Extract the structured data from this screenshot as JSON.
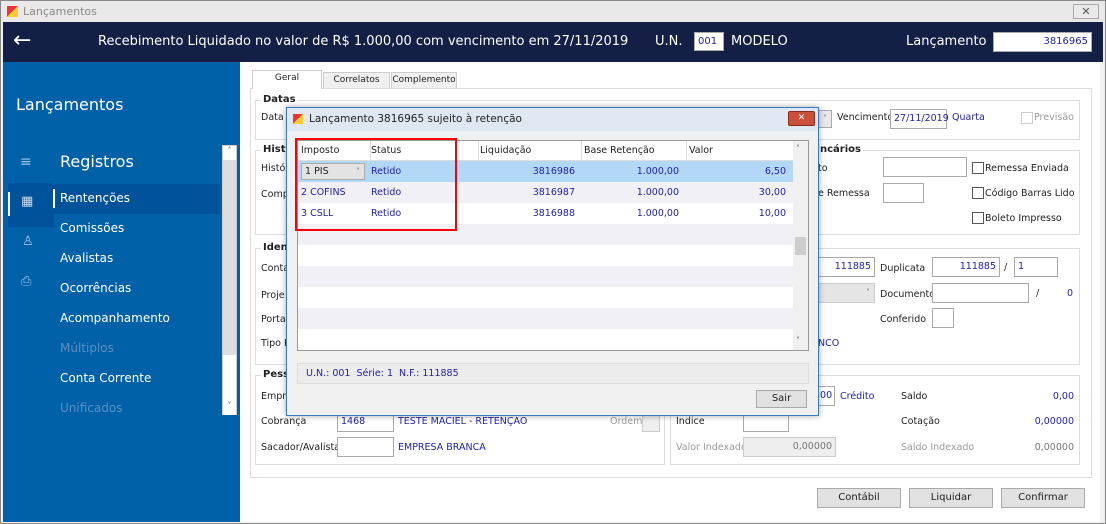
{
  "window": {
    "title": "Lançamentos"
  },
  "header": {
    "description": "Recebimento Liquidado no valor de R$ 1.000,00 com vencimento em 27/11/2019",
    "un_label": "U.N.",
    "un_value": "001",
    "un_name": "MODELO",
    "lancamento_label": "Lançamento",
    "lancamento_value": "3816965"
  },
  "sidebar": {
    "title": "Lançamentos",
    "section": "Registros",
    "items": [
      {
        "label": "Rentenções",
        "active": true,
        "enabled": true
      },
      {
        "label": "Comissões",
        "enabled": true
      },
      {
        "label": "Avalistas",
        "enabled": true
      },
      {
        "label": "Ocorrências",
        "enabled": true
      },
      {
        "label": "Acompanhamento",
        "enabled": true
      },
      {
        "label": "Múltiplos",
        "enabled": false
      },
      {
        "label": "Conta Corrente",
        "enabled": true
      },
      {
        "label": "Unificados",
        "enabled": false
      }
    ]
  },
  "tabs": [
    "Geral",
    "Correlatos",
    "Complemento"
  ],
  "form": {
    "datas_title": "Datas",
    "data_label": "Data",
    "vencimento_label": "Vencimento",
    "vencimento_value": "27/11/2019",
    "weekday": "Quarta",
    "previsao_label": "Previsão",
    "historico_title": "Histo",
    "historico_label": "Histór",
    "comp_label": "Comp",
    "bancarios_title": "ncários",
    "banc_field1_label": "to",
    "banc_field2_label": "e Remessa",
    "remessa_enviada": "Remessa Enviada",
    "codigo_barras": "Código Barras Lido",
    "boleto_impresso": "Boleto Impresso",
    "ident_title": "Iden",
    "conta_label": "Conta",
    "projeto_label": "Proje",
    "portador_label": "Porta",
    "tipo_label": "Tipo F",
    "nf_value": "111885",
    "duplicata_label": "Duplicata",
    "duplicata_value": "111885",
    "duplicata_sep": "/",
    "duplicata_parcela": "1",
    "documento_label": "Documento",
    "documento_sep": "/",
    "documento_num": "0",
    "conferido_label": "Conferido",
    "tipo_value_fragment": "NCO",
    "pessoas_title": "Pess",
    "empresa_label": "Empre",
    "cobranca_label": "Cobrança",
    "cobranca_code": "1468",
    "cobranca_name": "TESTE MACIEL - RETENÇÃO",
    "ordem_label": "Ordem",
    "sacador_label": "Sacador/Avalista",
    "sacador_name": "EMPRESA BRANCA",
    "valor_fragment": ",00",
    "credito_label": "Crédito",
    "saldo_label": "Saldo",
    "saldo_value": "0,00",
    "indice_label": "Índice",
    "cotacao_label": "Cotação",
    "cotacao_value": "0,00000",
    "valor_indexado_label": "Valor Indexado",
    "valor_indexado_value": "0,00000",
    "saldo_indexado_label": "Saldo Indexado",
    "saldo_indexado_value": "0,00000"
  },
  "buttons": {
    "contabil": "Contábil",
    "liquidar": "Liquidar",
    "confirmar": "Confirmar"
  },
  "dialog": {
    "title": "Lançamento 3816965 sujeito à retenção",
    "columns": [
      "Imposto",
      "Status",
      "Liquidação",
      "Base Retenção",
      "Valor"
    ],
    "rows": [
      {
        "imposto": "1 PIS",
        "status": "Retido",
        "liquidacao": "3816986",
        "base": "1.000,00",
        "valor": "6,50"
      },
      {
        "imposto": "2 COFINS",
        "status": "Retido",
        "liquidacao": "3816987",
        "base": "1.000,00",
        "valor": "30,00"
      },
      {
        "imposto": "3 CSLL",
        "status": "Retido",
        "liquidacao": "3816988",
        "base": "1.000,00",
        "valor": "10,00"
      }
    ],
    "footer": "U.N.: 001  Série: 1  N.F.: 111885",
    "sair": "Sair"
  },
  "colors": {
    "header": "#141f45",
    "sidebar": "#0060a8",
    "highlight": "#ff0000",
    "selected_row": "#b3d7f7",
    "link_text": "#2222aa"
  }
}
